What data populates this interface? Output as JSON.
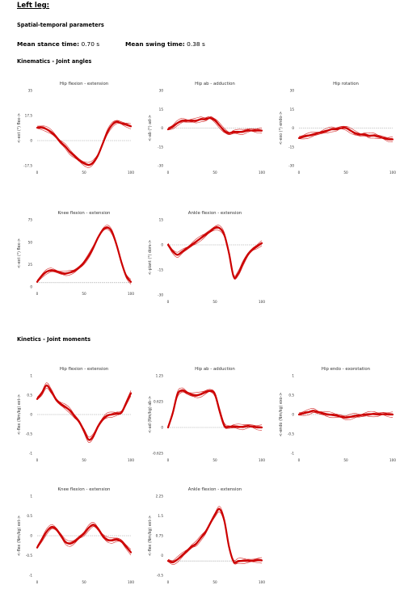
{
  "header": {
    "title": "Left leg:",
    "spatiotemporal": "Spatial-temporal parameters",
    "stance_label": "Mean stance time:",
    "stance_value": "0.70 s",
    "swing_label": "Mean swing time:",
    "swing_value": "0.38 s",
    "kinematics": "Kinematics - Joint angles",
    "kinetics": "Kinetics - Joint moments"
  },
  "colors": {
    "trace": "#cc0000",
    "zero_line": "#999999",
    "axis": "#555555"
  },
  "chart_data": [
    {
      "type": "line",
      "title": "Hip flexion - extension",
      "ylabel": "<-ext (°) flex->",
      "xlim": [
        0,
        100
      ],
      "ylim": [
        -17.5,
        35
      ],
      "yticks": [
        "35",
        "17.5",
        "0",
        "-17.5"
      ],
      "xticks": [
        "0",
        "50",
        "100"
      ],
      "x": [
        0,
        5,
        10,
        15,
        20,
        25,
        30,
        35,
        40,
        45,
        50,
        55,
        60,
        65,
        70,
        75,
        80,
        85,
        90,
        95,
        100
      ],
      "series": [
        {
          "values": [
            9,
            9,
            8,
            6,
            3,
            -1,
            -4,
            -8,
            -11,
            -14,
            -16,
            -17,
            -15,
            -10,
            -2,
            6,
            11,
            13,
            12,
            11,
            10
          ]
        }
      ]
    },
    {
      "type": "line",
      "title": "Hip ab - adduction",
      "ylabel": "<-ab (°) ad->",
      "xlim": [
        0,
        100
      ],
      "ylim": [
        -30,
        30
      ],
      "yticks": [
        "30",
        "15",
        "0",
        "-15",
        "-30"
      ],
      "xticks": [
        "0",
        "50",
        "100"
      ],
      "x": [
        0,
        5,
        10,
        15,
        20,
        25,
        30,
        35,
        40,
        45,
        50,
        55,
        60,
        65,
        70,
        75,
        80,
        85,
        90,
        95,
        100
      ],
      "series": [
        {
          "values": [
            -1,
            1,
            4,
            6,
            6,
            6,
            6,
            7,
            7,
            8,
            6,
            2,
            -2,
            -4,
            -3,
            -3,
            -3,
            -2,
            -2,
            -2,
            -2
          ]
        }
      ]
    },
    {
      "type": "line",
      "title": "Hip rotation",
      "ylabel": "<-exo (°) endo->",
      "xlim": [
        0,
        100
      ],
      "ylim": [
        -30,
        30
      ],
      "yticks": [
        "30",
        "15",
        "0",
        "-15",
        "-30"
      ],
      "xticks": [
        "0",
        "50",
        "100"
      ],
      "x": [
        0,
        5,
        10,
        15,
        20,
        25,
        30,
        35,
        40,
        45,
        50,
        55,
        60,
        65,
        70,
        75,
        80,
        85,
        90,
        95,
        100
      ],
      "series": [
        {
          "values": [
            -8,
            -7,
            -6,
            -5,
            -4,
            -3,
            -2,
            -1,
            -1,
            0,
            0,
            -2,
            -4,
            -5,
            -5,
            -6,
            -6,
            -7,
            -8,
            -9,
            -9
          ]
        }
      ]
    },
    {
      "type": "line",
      "title": "Knee flexion - extension",
      "ylabel": "<-ext (°) flex->",
      "xlim": [
        0,
        100
      ],
      "ylim": [
        -5,
        75
      ],
      "yticks": [
        "75",
        "50",
        "25",
        "0"
      ],
      "xticks": [
        "0",
        "50",
        "100"
      ],
      "x": [
        0,
        5,
        10,
        15,
        20,
        25,
        30,
        35,
        40,
        45,
        50,
        55,
        60,
        65,
        70,
        75,
        80,
        85,
        90,
        95,
        100
      ],
      "series": [
        {
          "values": [
            1,
            8,
            13,
            15,
            14,
            12,
            11,
            12,
            14,
            18,
            24,
            32,
            42,
            54,
            63,
            66,
            60,
            44,
            24,
            8,
            1
          ]
        }
      ]
    },
    {
      "type": "line",
      "title": "Ankle flexion - extension",
      "ylabel": "<-plant (°) dors->",
      "xlim": [
        0,
        100
      ],
      "ylim": [
        -30,
        15
      ],
      "yticks": [
        "15",
        "0",
        "-15",
        "-30"
      ],
      "xticks": [
        "0",
        "50",
        "100"
      ],
      "x": [
        0,
        5,
        10,
        15,
        20,
        25,
        30,
        35,
        40,
        45,
        50,
        55,
        60,
        65,
        70,
        75,
        80,
        85,
        90,
        95,
        100
      ],
      "series": [
        {
          "values": [
            0,
            -4,
            -6,
            -4,
            -2,
            0,
            2,
            4,
            6,
            8,
            10,
            10,
            6,
            -5,
            -19,
            -17,
            -11,
            -6,
            -3,
            -1,
            1
          ]
        }
      ]
    },
    {
      "type": "line",
      "title": "Hip flexion - extension",
      "ylabel": "<-flex (Nm/kg) ext->",
      "xlim": [
        0,
        100
      ],
      "ylim": [
        -1,
        1
      ],
      "yticks": [
        "1",
        "0.5",
        "0",
        "-0.5",
        "-1"
      ],
      "xticks": [
        "0",
        "50",
        "100"
      ],
      "x": [
        0,
        5,
        10,
        15,
        20,
        25,
        30,
        35,
        40,
        45,
        50,
        55,
        60,
        65,
        70,
        75,
        80,
        85,
        90,
        95,
        100
      ],
      "series": [
        {
          "values": [
            0.4,
            0.55,
            0.75,
            0.6,
            0.4,
            0.28,
            0.2,
            0.1,
            -0.05,
            -0.2,
            -0.42,
            -0.65,
            -0.55,
            -0.3,
            -0.12,
            -0.02,
            0,
            0.02,
            0.05,
            0.3,
            0.55
          ]
        }
      ]
    },
    {
      "type": "line",
      "title": "Hip ab - adduction",
      "ylabel": "<-ad (Nm/kg) ab->",
      "xlim": [
        0,
        100
      ],
      "ylim": [
        -0.625,
        1.25
      ],
      "yticks": [
        "1.25",
        "0.625",
        "0",
        "-0.625"
      ],
      "xticks": [
        "0",
        "50",
        "100"
      ],
      "x": [
        0,
        5,
        10,
        15,
        20,
        25,
        30,
        35,
        40,
        45,
        50,
        55,
        60,
        65,
        70,
        75,
        80,
        85,
        90,
        95,
        100
      ],
      "series": [
        {
          "values": [
            0,
            0.35,
            0.8,
            0.9,
            0.85,
            0.8,
            0.78,
            0.8,
            0.85,
            0.88,
            0.8,
            0.4,
            0.05,
            0.02,
            0.03,
            0.02,
            0.01,
            0.03,
            0.02,
            0,
            0
          ]
        }
      ]
    },
    {
      "type": "line",
      "title": "Hip endo - exorotation",
      "ylabel": "<-endo (Nm/kg) exo->",
      "xlim": [
        0,
        100
      ],
      "ylim": [
        -1,
        1
      ],
      "yticks": [
        "1",
        "0.5",
        "0",
        "-0.5",
        "-1"
      ],
      "xticks": [
        "0",
        "50",
        "100"
      ],
      "x": [
        0,
        5,
        10,
        15,
        20,
        25,
        30,
        35,
        40,
        45,
        50,
        55,
        60,
        65,
        70,
        75,
        80,
        85,
        90,
        95,
        100
      ],
      "series": [
        {
          "values": [
            0,
            0.03,
            0.06,
            0.1,
            0.07,
            0.04,
            0.01,
            -0.01,
            -0.03,
            -0.06,
            -0.08,
            -0.06,
            -0.03,
            -0.02,
            0,
            0.01,
            0.01,
            0,
            0.01,
            0,
            0
          ]
        }
      ]
    },
    {
      "type": "line",
      "title": "Knee flexion - extension",
      "ylabel": "<-flex (Nm/kg) ext->",
      "xlim": [
        0,
        100
      ],
      "ylim": [
        -1,
        1
      ],
      "yticks": [
        "1",
        "0.5",
        "0",
        "-0.5",
        "-1"
      ],
      "xticks": [
        "0",
        "50",
        "100"
      ],
      "x": [
        0,
        5,
        10,
        15,
        20,
        25,
        30,
        35,
        40,
        45,
        50,
        55,
        60,
        65,
        70,
        75,
        80,
        85,
        90,
        95,
        100
      ],
      "series": [
        {
          "values": [
            -0.3,
            -0.1,
            0.1,
            0.22,
            0.18,
            0.02,
            -0.15,
            -0.2,
            -0.15,
            -0.05,
            0.05,
            0.2,
            0.28,
            0.18,
            0,
            -0.1,
            -0.12,
            -0.1,
            -0.15,
            -0.28,
            -0.42
          ]
        }
      ]
    },
    {
      "type": "line",
      "title": "Ankle flexion - extension",
      "ylabel": "<-flex (Nm/kg) ext->",
      "xlim": [
        0,
        100
      ],
      "ylim": [
        -0.5,
        2.25
      ],
      "yticks": [
        "2.25",
        "1.5",
        "0.75",
        "0",
        "-0.5"
      ],
      "xticks": [
        "0",
        "50",
        "100"
      ],
      "x": [
        0,
        5,
        10,
        15,
        20,
        25,
        30,
        35,
        40,
        45,
        50,
        55,
        60,
        65,
        70,
        75,
        80,
        85,
        90,
        95,
        100
      ],
      "series": [
        {
          "values": [
            0,
            -0.05,
            0.05,
            0.2,
            0.35,
            0.5,
            0.6,
            0.8,
            1.0,
            1.3,
            1.6,
            1.8,
            1.4,
            0.5,
            -0.02,
            0,
            0,
            0,
            0,
            0.02,
            0.02
          ]
        }
      ]
    }
  ]
}
